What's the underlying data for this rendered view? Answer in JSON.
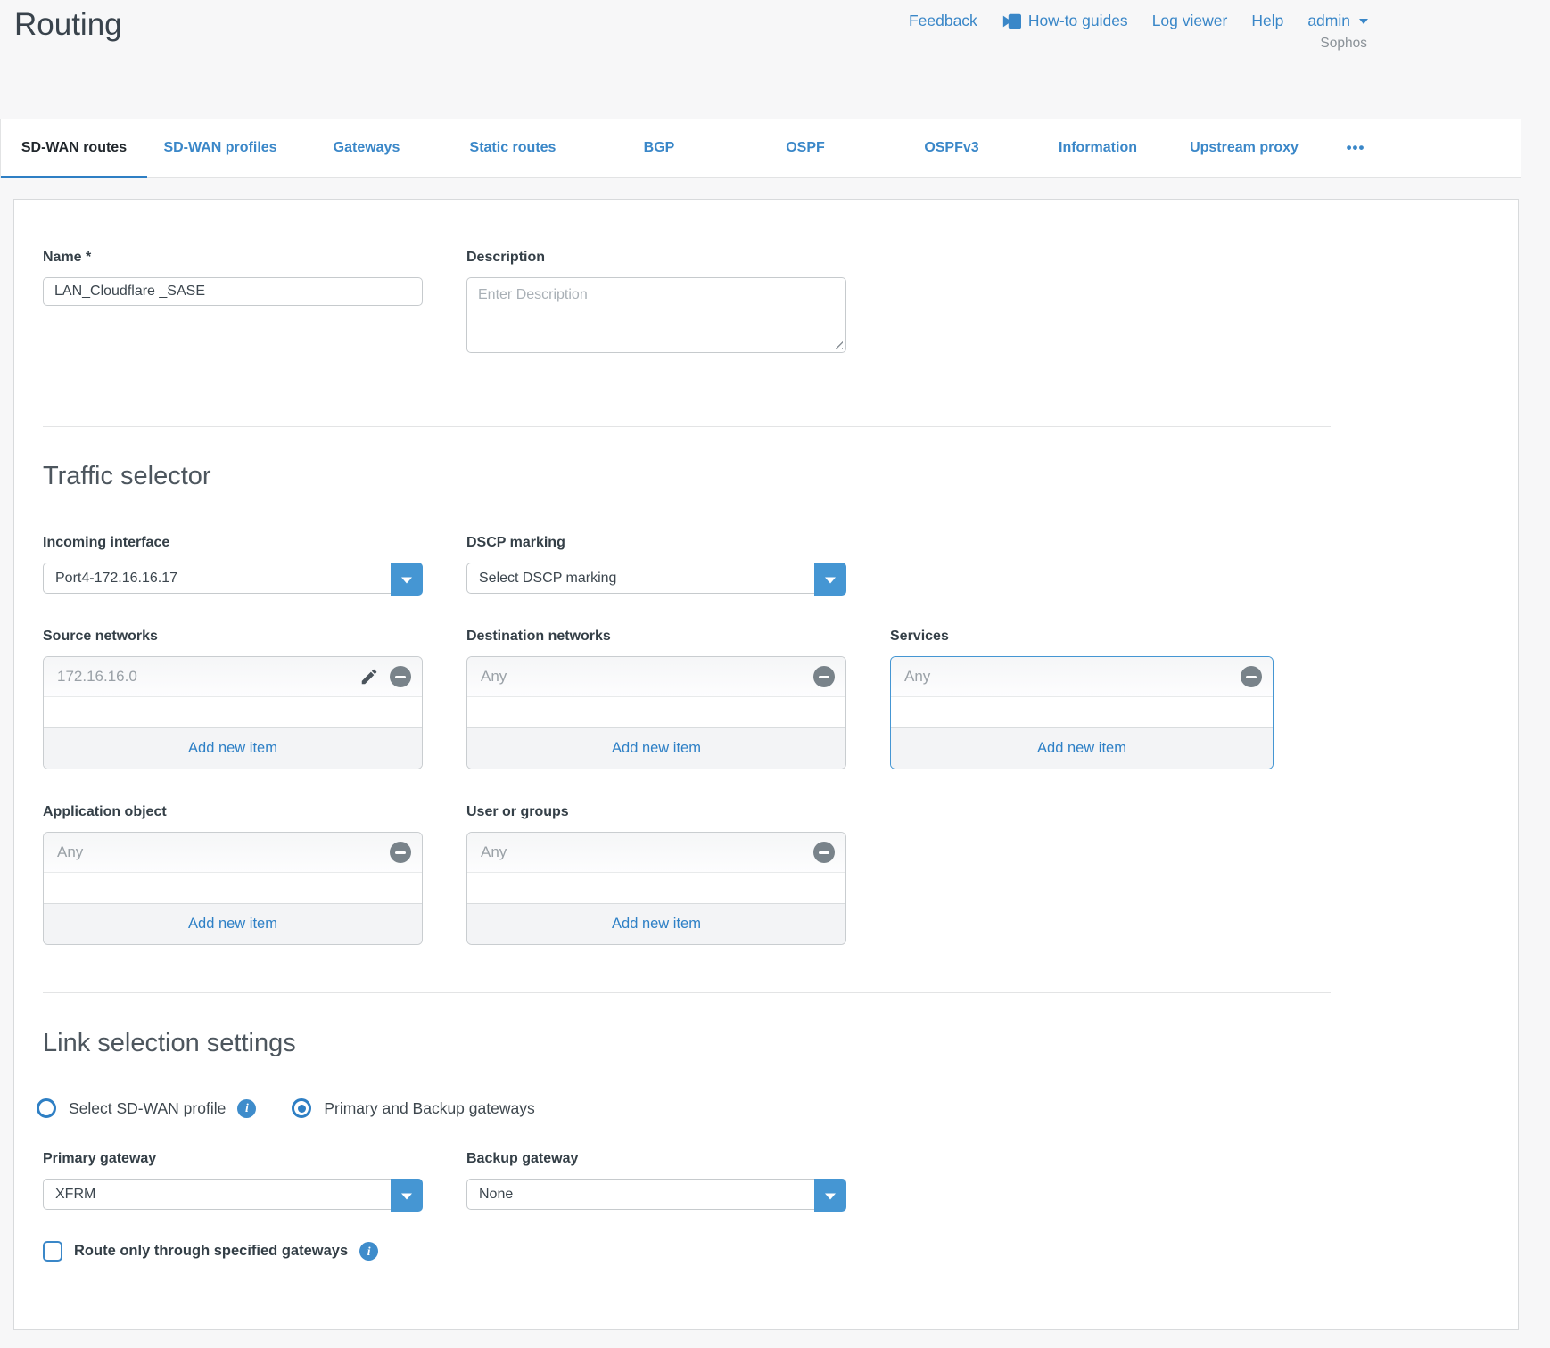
{
  "header": {
    "title": "Routing",
    "links": [
      "Feedback",
      "How-to guides",
      "Log viewer",
      "Help"
    ],
    "user": "admin",
    "brand": "Sophos"
  },
  "tabs": [
    {
      "label": "SD-WAN routes",
      "active": true
    },
    {
      "label": "SD-WAN profiles"
    },
    {
      "label": "Gateways"
    },
    {
      "label": "Static routes"
    },
    {
      "label": "BGP"
    },
    {
      "label": "OSPF"
    },
    {
      "label": "OSPFv3"
    },
    {
      "label": "Information"
    },
    {
      "label": "Upstream proxy"
    },
    {
      "label": "•••",
      "more": true
    }
  ],
  "general": {
    "name_label": "Name *",
    "name_value": "LAN_Cloudflare _SASE",
    "description_label": "Description",
    "description_placeholder": "Enter Description"
  },
  "traffic_selector": {
    "heading": "Traffic selector",
    "incoming_interface": {
      "label": "Incoming interface",
      "value": "Port4-172.16.16.17"
    },
    "dscp_marking": {
      "label": "DSCP marking",
      "value": "Select DSCP marking"
    },
    "source_networks": {
      "label": "Source networks",
      "item": "172.16.16.0",
      "add_label": "Add new item"
    },
    "destination_networks": {
      "label": "Destination networks",
      "item": "Any",
      "add_label": "Add new item"
    },
    "services": {
      "label": "Services",
      "item": "Any",
      "add_label": "Add new item"
    },
    "application_object": {
      "label": "Application object",
      "item": "Any",
      "add_label": "Add new item"
    },
    "user_or_groups": {
      "label": "User or groups",
      "item": "Any",
      "add_label": "Add new item"
    }
  },
  "link_selection": {
    "heading": "Link selection settings",
    "profile_radio_label": "Select SD-WAN profile",
    "gateways_radio_label": "Primary and Backup gateways",
    "primary_gateway": {
      "label": "Primary gateway",
      "value": "XFRM"
    },
    "backup_gateway": {
      "label": "Backup gateway",
      "value": "None"
    },
    "route_only_label": "Route only through specified gateways"
  },
  "colors": {
    "accent_blue": "#3a87c8",
    "dropdown_button_blue": "#4596d3",
    "active_tab_underline": "#2e7fc4",
    "dark_text": "#36424a",
    "muted_item_text": "#9aa1a7",
    "focused_box_border": "#4596d3"
  }
}
